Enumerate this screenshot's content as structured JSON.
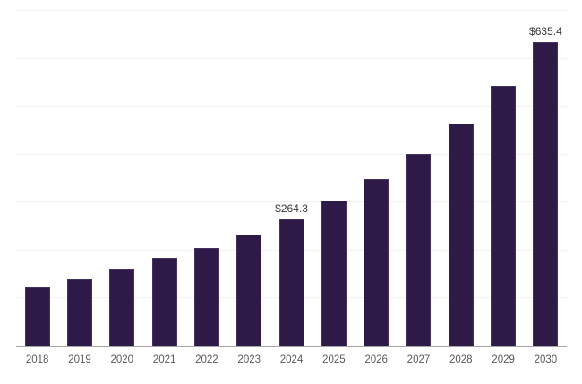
{
  "chart_data": {
    "type": "bar",
    "title": "",
    "xlabel": "",
    "ylabel": "",
    "categories": [
      "2018",
      "2019",
      "2020",
      "2021",
      "2022",
      "2023",
      "2024",
      "2025",
      "2026",
      "2027",
      "2028",
      "2029",
      "2030"
    ],
    "values": [
      123.3,
      140.2,
      160.7,
      185.0,
      205.6,
      233.6,
      264.3,
      304.7,
      349.5,
      401.8,
      465.3,
      543.8,
      635.4
    ],
    "data_labels": [
      "",
      "",
      "",
      "",
      "",
      "",
      "$264.3",
      "",
      "",
      "",
      "",
      "",
      "$635.4"
    ],
    "ylim": [
      0,
      700
    ],
    "gridline_step": 100,
    "grid": true,
    "y_axis_ticks_visible": false,
    "legend_position": "none"
  },
  "style": {
    "background": "#FFFFFF",
    "bar_fill": "#2E1A47",
    "bar_border": "#453063",
    "axis_line_color": "#A6A6A6",
    "gridline_color": "#F2F2F2",
    "tick_label_color": "#595959",
    "data_label_color": "#3A3A3A"
  }
}
